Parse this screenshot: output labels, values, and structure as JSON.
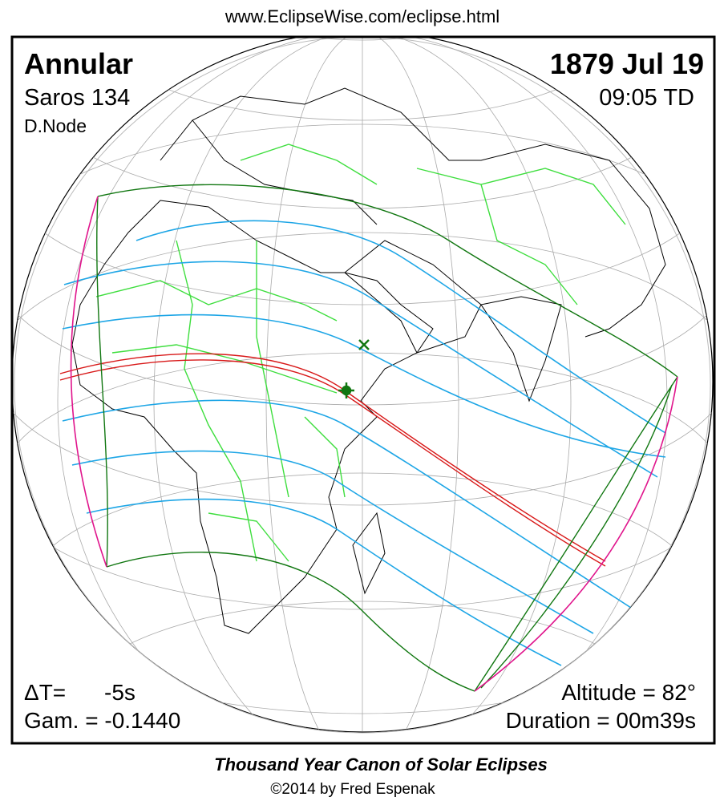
{
  "header": {
    "url": "www.EclipseWise.com/eclipse.html"
  },
  "panel": {
    "eclipse_type": "Annular",
    "date": "1879 Jul 19",
    "saros": "Saros 134",
    "time": "09:05 TD",
    "node": "D.Node",
    "delta_t_label": "ΔT=",
    "delta_t_value": "-5s",
    "gamma": "Gam. = -0.1440",
    "altitude": "Altitude = 82°",
    "duration": "Duration = 00m39s"
  },
  "footer": {
    "title": "Thousand Year Canon of Solar Eclipses",
    "credit": "©2014 by Fred Espenak"
  }
}
